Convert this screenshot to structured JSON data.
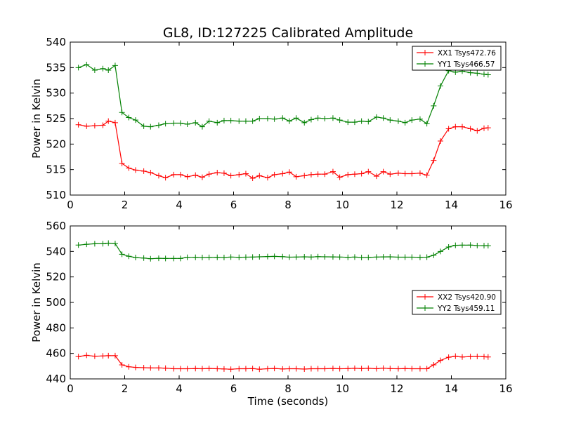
{
  "title": "GL8, ID:127225 Calibrated Amplitude",
  "chart_data": [
    {
      "type": "line",
      "title": "GL8, ID:127225 Calibrated Amplitude",
      "xlabel": "",
      "ylabel": "Power in Kelvin",
      "xlim": [
        0,
        16
      ],
      "ylim": [
        510,
        540
      ],
      "xticks": [
        0,
        2,
        4,
        6,
        8,
        10,
        12,
        14,
        16
      ],
      "yticks": [
        510,
        515,
        520,
        525,
        530,
        535,
        540
      ],
      "grid": false,
      "legend_position": "upper right",
      "x": [
        0.3,
        0.6,
        0.9,
        1.2,
        1.4,
        1.65,
        1.9,
        2.15,
        2.4,
        2.7,
        2.95,
        3.25,
        3.5,
        3.8,
        4.05,
        4.3,
        4.6,
        4.85,
        5.1,
        5.4,
        5.65,
        5.9,
        6.2,
        6.45,
        6.7,
        6.95,
        7.25,
        7.5,
        7.8,
        8.05,
        8.3,
        8.6,
        8.85,
        9.1,
        9.35,
        9.65,
        9.9,
        10.2,
        10.45,
        10.7,
        10.95,
        11.25,
        11.5,
        11.75,
        12.05,
        12.3,
        12.55,
        12.85,
        13.1,
        13.35,
        13.6,
        13.9,
        14.15,
        14.4,
        14.7,
        14.95,
        15.2,
        15.35
      ],
      "series": [
        {
          "name": "XX1 Tsys472.76",
          "color": "#ff0000",
          "values": [
            523.8,
            523.5,
            523.6,
            523.7,
            524.5,
            524.2,
            516.2,
            515.3,
            514.9,
            514.7,
            514.4,
            513.8,
            513.4,
            514.0,
            514.0,
            513.6,
            513.9,
            513.5,
            514.1,
            514.4,
            514.3,
            513.8,
            514.0,
            514.2,
            513.3,
            513.8,
            513.4,
            514.0,
            514.2,
            514.5,
            513.6,
            513.8,
            514.0,
            514.1,
            514.1,
            514.6,
            513.5,
            514.0,
            514.1,
            514.2,
            514.6,
            513.7,
            514.6,
            514.1,
            514.3,
            514.2,
            514.2,
            514.3,
            513.9,
            516.8,
            520.6,
            523.0,
            523.4,
            523.4,
            523.0,
            522.6,
            523.1,
            523.2
          ]
        },
        {
          "name": "YY1 Tsys466.57",
          "color": "#008000",
          "values": [
            535.0,
            535.6,
            534.5,
            534.8,
            534.5,
            535.4,
            526.2,
            525.2,
            524.7,
            523.5,
            523.4,
            523.7,
            524.0,
            524.1,
            524.1,
            523.9,
            524.2,
            523.4,
            524.5,
            524.2,
            524.6,
            524.6,
            524.5,
            524.5,
            524.5,
            525.0,
            525.0,
            524.9,
            525.1,
            524.5,
            525.1,
            524.2,
            524.8,
            525.1,
            525.0,
            525.1,
            524.7,
            524.3,
            524.3,
            524.5,
            524.4,
            525.3,
            525.1,
            524.7,
            524.5,
            524.2,
            524.7,
            524.9,
            524.0,
            527.5,
            531.4,
            534.4,
            534.1,
            534.3,
            534.0,
            533.9,
            533.7,
            533.6
          ]
        }
      ]
    },
    {
      "type": "line",
      "title": "",
      "xlabel": "Time (seconds)",
      "ylabel": "Power in Kelvin",
      "xlim": [
        0,
        16
      ],
      "ylim": [
        440,
        560
      ],
      "xticks": [
        0,
        2,
        4,
        6,
        8,
        10,
        12,
        14,
        16
      ],
      "yticks": [
        440,
        460,
        480,
        500,
        520,
        540,
        560
      ],
      "grid": false,
      "legend_position": "center right",
      "x": [
        0.3,
        0.6,
        0.9,
        1.2,
        1.4,
        1.65,
        1.9,
        2.15,
        2.4,
        2.7,
        2.95,
        3.25,
        3.5,
        3.8,
        4.05,
        4.3,
        4.6,
        4.85,
        5.1,
        5.4,
        5.65,
        5.9,
        6.2,
        6.45,
        6.7,
        6.95,
        7.25,
        7.5,
        7.8,
        8.05,
        8.3,
        8.6,
        8.85,
        9.1,
        9.35,
        9.65,
        9.9,
        10.2,
        10.45,
        10.7,
        10.95,
        11.25,
        11.5,
        11.75,
        12.05,
        12.3,
        12.55,
        12.85,
        13.1,
        13.35,
        13.6,
        13.9,
        14.15,
        14.4,
        14.7,
        14.95,
        15.2,
        15.35
      ],
      "series": [
        {
          "name": "XX2 Tsys420.90",
          "color": "#ff0000",
          "values": [
            457.5,
            458.5,
            457.8,
            458.0,
            458.2,
            458.2,
            451.0,
            449.5,
            449.0,
            448.8,
            448.6,
            448.6,
            448.4,
            448.0,
            448.0,
            448.0,
            448.1,
            448.0,
            448.2,
            448.0,
            447.8,
            447.6,
            448.0,
            448.0,
            448.1,
            447.6,
            448.0,
            448.2,
            447.8,
            448.0,
            448.0,
            447.7,
            448.0,
            448.0,
            448.0,
            448.2,
            448.0,
            448.1,
            448.3,
            448.1,
            448.3,
            448.0,
            448.4,
            448.1,
            448.0,
            448.1,
            448.0,
            448.0,
            448.0,
            451.0,
            454.5,
            457.0,
            457.8,
            457.2,
            457.5,
            457.6,
            457.4,
            457.2
          ]
        },
        {
          "name": "YY2 Tsys459.11",
          "color": "#008000",
          "values": [
            545.0,
            545.6,
            546.0,
            546.0,
            546.5,
            546.2,
            537.8,
            536.2,
            535.2,
            534.8,
            534.3,
            534.6,
            534.5,
            534.5,
            534.5,
            535.4,
            535.4,
            535.2,
            535.3,
            535.4,
            535.2,
            535.6,
            535.4,
            535.5,
            535.6,
            535.8,
            536.0,
            536.1,
            535.9,
            535.5,
            535.6,
            535.8,
            535.6,
            535.9,
            535.8,
            535.7,
            535.6,
            535.4,
            535.6,
            535.2,
            535.3,
            535.6,
            535.7,
            535.8,
            535.5,
            535.5,
            535.5,
            535.4,
            535.5,
            537.0,
            540.0,
            543.5,
            544.8,
            544.9,
            545.0,
            544.6,
            544.5,
            544.5
          ]
        }
      ]
    }
  ]
}
